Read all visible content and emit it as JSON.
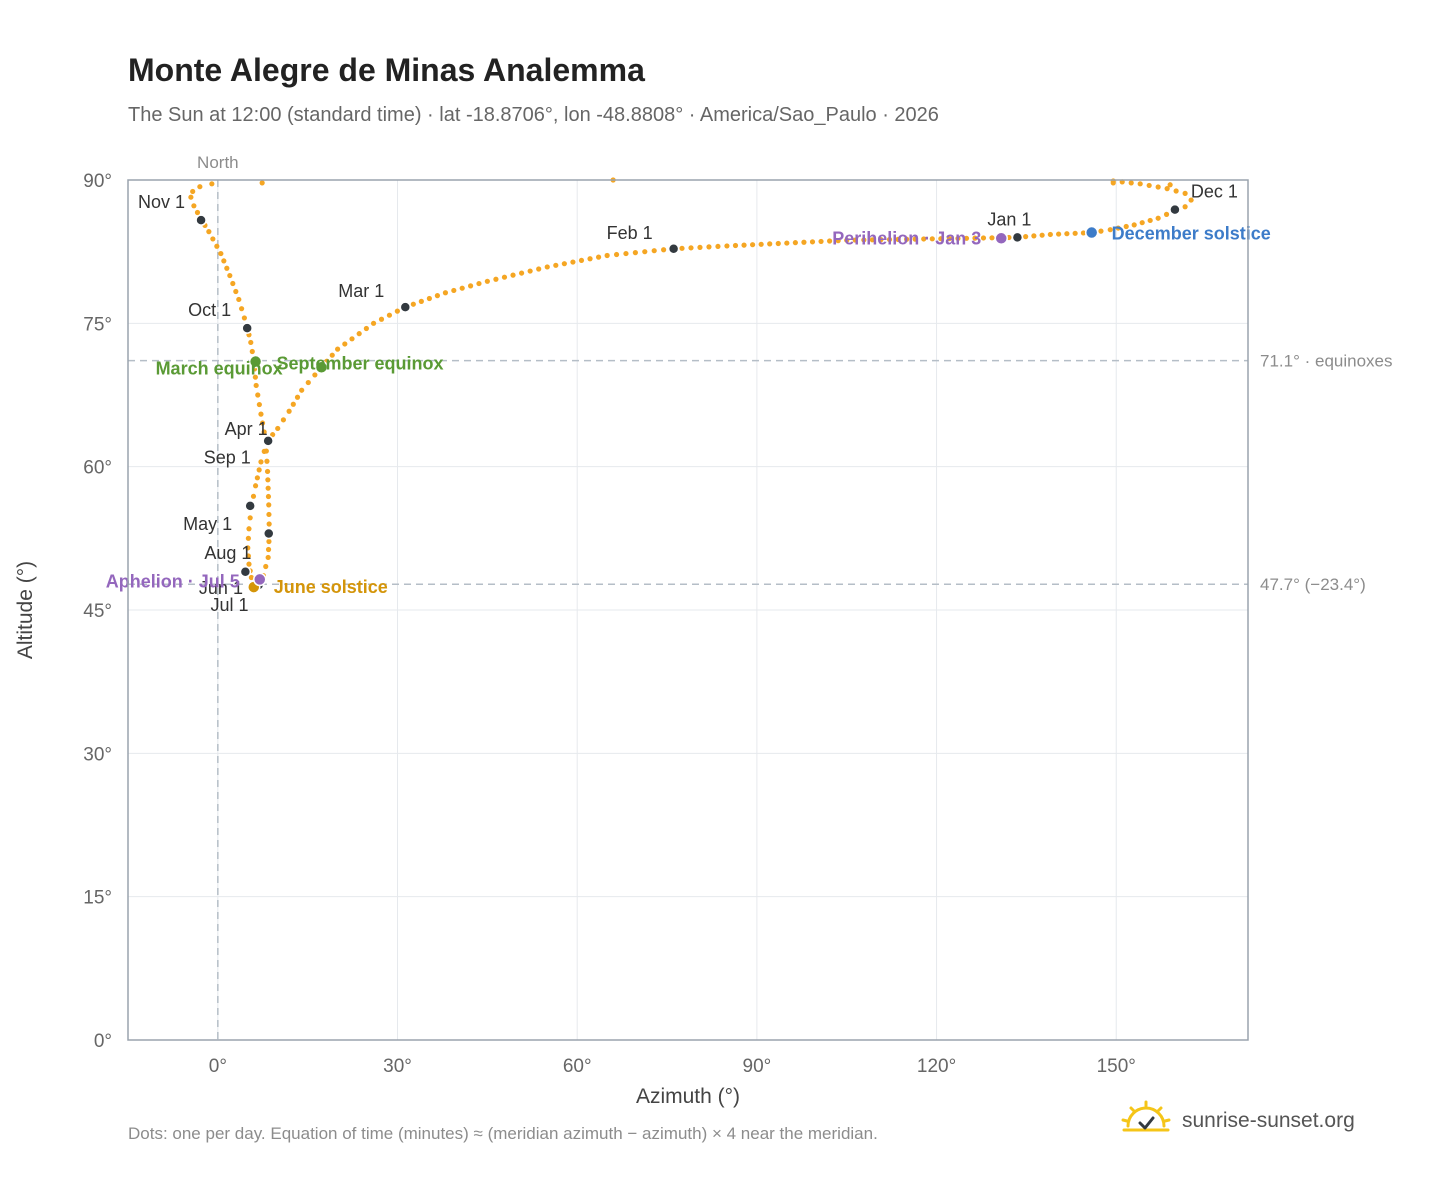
{
  "header": {
    "title": "Monte Alegre de Minas Analemma",
    "subtitle": "The Sun at 12:00 (standard time) · lat -18.8706°, lon -48.8808° · America/Sao_Paulo · 2026"
  },
  "footer": {
    "note": "Dots: one per day. Equation of time (minutes) ≈ (meridian azimuth − azimuth) × 4 near the meridian.",
    "brand": "sunrise-sunset.org"
  },
  "colors": {
    "path": "#f5a623",
    "month_marker": "#333a40",
    "equinox": "#5a9a35",
    "june_solstice": "#d4950a",
    "december_solstice": "#3d7cc9",
    "apsis": "#9467bd",
    "grid": "#e6e9ed",
    "frame": "#9aa3ad"
  },
  "chart_data": {
    "type": "scatter",
    "title": "Monte Alegre de Minas Analemma",
    "xlabel": "Azimuth (°)",
    "ylabel": "Altitude (°)",
    "xlim": [
      -15,
      172
    ],
    "ylim": [
      0,
      90
    ],
    "x_ticks": [
      0,
      30,
      60,
      90,
      120,
      150
    ],
    "x_tick_labels": [
      "0°",
      "30°",
      "60°",
      "90°",
      "120°",
      "150°"
    ],
    "y_ticks": [
      0,
      15,
      30,
      45,
      60,
      75,
      90
    ],
    "y_tick_labels": [
      "0°",
      "15°",
      "30°",
      "45°",
      "60°",
      "75°",
      "90°"
    ],
    "grid": true,
    "meridian": {
      "azimuth": 0,
      "label": "North"
    },
    "reference_lines": [
      {
        "altitude": 71.1,
        "label": "71.1° · equinoxes"
      },
      {
        "altitude": 47.7,
        "label": "47.7° (−23.4°)"
      }
    ],
    "path_points": [
      [
        145.9,
        84.5
      ],
      [
        139,
        84.3
      ],
      [
        133.5,
        84.0
      ],
      [
        125,
        83.9
      ],
      [
        115,
        83.8
      ],
      [
        105,
        83.7
      ],
      [
        95,
        83.4
      ],
      [
        85,
        83.1
      ],
      [
        76,
        82.8
      ],
      [
        65,
        82.1
      ],
      [
        55,
        80.9
      ],
      [
        45,
        79.4
      ],
      [
        38,
        78.2
      ],
      [
        31.3,
        76.7
      ],
      [
        26,
        75.0
      ],
      [
        20,
        72.3
      ],
      [
        17.3,
        70.4
      ],
      [
        14,
        68.0
      ],
      [
        11.9,
        65.8
      ],
      [
        10,
        64.0
      ],
      [
        8.3,
        62.7
      ],
      [
        7.2,
        60.5
      ],
      [
        6.3,
        58.0
      ],
      [
        5.6,
        55.8
      ],
      [
        5.2,
        53.5
      ],
      [
        5.0,
        51.5
      ],
      [
        5.2,
        49.8
      ],
      [
        5.6,
        48.4
      ],
      [
        6.0,
        47.6
      ],
      [
        6.6,
        47.8
      ],
      [
        7.6,
        48.6
      ],
      [
        8.4,
        50.5
      ],
      [
        8.6,
        53.0
      ],
      [
        8.5,
        56.0
      ],
      [
        8.3,
        59.5
      ],
      [
        8.0,
        62.7
      ],
      [
        7.2,
        65.5
      ],
      [
        6.4,
        68.5
      ],
      [
        6.0,
        71.1
      ],
      [
        5.5,
        73.0
      ],
      [
        4.9,
        74.6
      ],
      [
        3.5,
        77.5
      ],
      [
        2.0,
        80.0
      ],
      [
        0.5,
        82.3
      ],
      [
        -1.5,
        84.6
      ],
      [
        -2.8,
        85.9
      ],
      [
        -4.0,
        87.3
      ],
      [
        -4.5,
        88.2
      ],
      [
        -4.2,
        88.8
      ],
      [
        -3.0,
        89.3
      ],
      [
        -1.0,
        89.6
      ],
      [
        0.0,
        89.8
      ]
    ],
    "path_points_tail": [
      [
        149.5,
        89.9
      ],
      [
        154,
        89.6
      ],
      [
        158.5,
        89.1
      ],
      [
        161.5,
        88.6
      ],
      [
        162.5,
        87.9
      ],
      [
        161.5,
        87.2
      ],
      [
        159.8,
        86.8
      ],
      [
        157,
        86.0
      ],
      [
        153,
        85.3
      ],
      [
        149,
        84.8
      ],
      [
        145.9,
        84.5
      ]
    ],
    "stray_points": [
      [
        7.4,
        89.7
      ],
      [
        66,
        90.0
      ],
      [
        149.5,
        89.7
      ],
      [
        159,
        89.5
      ]
    ],
    "month_markers": [
      {
        "label": "Jan 1",
        "az": 133.5,
        "alt": 84.0
      },
      {
        "label": "Feb 1",
        "az": 76.1,
        "alt": 82.8
      },
      {
        "label": "Mar 1",
        "az": 31.3,
        "alt": 76.7
      },
      {
        "label": "Apr 1",
        "az": 8.4,
        "alt": 62.7
      },
      {
        "label": "May 1",
        "az": 5.4,
        "alt": 55.9
      },
      {
        "label": "Jun 1",
        "az": 6.2,
        "alt": 47.6
      },
      {
        "label": "Jul 1",
        "az": 6.8,
        "alt": 47.6
      },
      {
        "label": "Aug 1",
        "az": 4.6,
        "alt": 49.0
      },
      {
        "label": "Sep 1",
        "az": 8.5,
        "alt": 53.0
      },
      {
        "label": "Oct 1",
        "az": 4.9,
        "alt": 74.5
      },
      {
        "label": "Nov 1",
        "az": -2.8,
        "alt": 85.8
      },
      {
        "label": "Dec 1",
        "az": 159.8,
        "alt": 86.9
      }
    ],
    "events": [
      {
        "label": "March equinox",
        "az": 6.3,
        "alt": 71.0,
        "color": "#5a9a35"
      },
      {
        "label": "September equinox",
        "az": 17.3,
        "alt": 70.4,
        "color": "#5a9a35"
      },
      {
        "label": "June solstice",
        "az": 6.0,
        "alt": 47.4,
        "color": "#d4950a"
      },
      {
        "label": "December solstice",
        "az": 145.9,
        "alt": 84.5,
        "color": "#3d7cc9"
      },
      {
        "label": "Perihelion · Jan 3",
        "az": 130.8,
        "alt": 83.9,
        "color": "#9467bd"
      },
      {
        "label": "Aphelion · Jul 5",
        "az": 7.0,
        "alt": 48.2,
        "color": "#9467bd"
      }
    ]
  }
}
